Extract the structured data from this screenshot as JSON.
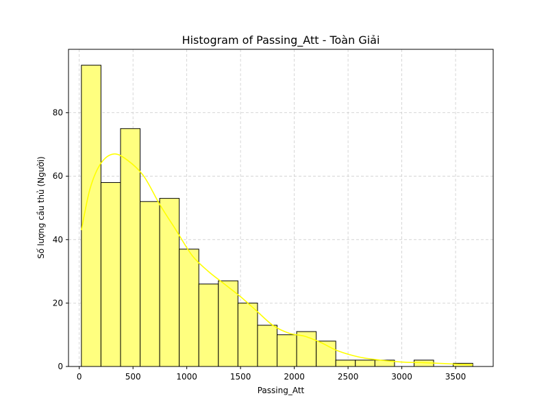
{
  "chart_data": {
    "type": "bar",
    "title": "Histogram of Passing_Att - Toàn Giải",
    "xlabel": "Passing_Att",
    "ylabel": "Số lượng cầu thủ (Người)",
    "xlim": [
      -100,
      3850
    ],
    "ylim": [
      0,
      100
    ],
    "xticks": [
      0,
      500,
      1000,
      1500,
      2000,
      2500,
      3000,
      3500
    ],
    "xtick_labels": [
      "0",
      "500",
      "1000",
      "1500",
      "2000",
      "2500",
      "3000",
      "3500"
    ],
    "yticks": [
      0,
      20,
      40,
      60,
      80
    ],
    "ytick_labels": [
      "0",
      "20",
      "40",
      "60",
      "80"
    ],
    "grid": true,
    "bin_edges": [
      20,
      202,
      384,
      566,
      748,
      930,
      1112,
      1294,
      1476,
      1658,
      1840,
      2022,
      2204,
      2386,
      2568,
      2750,
      2932,
      3114,
      3296,
      3478,
      3660
    ],
    "counts": [
      95,
      58,
      75,
      52,
      53,
      37,
      26,
      27,
      20,
      13,
      10,
      11,
      8,
      2,
      2,
      2,
      0,
      2,
      0,
      1
    ],
    "kde": {
      "x": [
        20,
        100,
        200,
        320,
        450,
        600,
        750,
        900,
        1050,
        1200,
        1350,
        1500,
        1650,
        1800,
        1950,
        2100,
        2250,
        2400,
        2600,
        2800,
        3000,
        3200,
        3400,
        3660
      ],
      "y": [
        43,
        56,
        64,
        67,
        65,
        60,
        51,
        43,
        35,
        30,
        26,
        22,
        17.5,
        13,
        10.5,
        9.5,
        7.5,
        5,
        3,
        2,
        1.4,
        1.2,
        0.9,
        0.5
      ]
    },
    "colors": {
      "bar_fill": "#ffff7f",
      "bar_edge": "#000000",
      "kde_line": "#ffff00",
      "grid": "#cccccc"
    }
  }
}
